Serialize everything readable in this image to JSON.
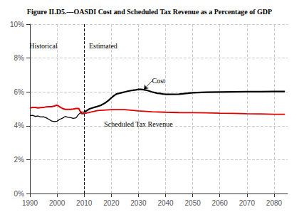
{
  "chart_data": {
    "type": "line",
    "title": "Figure II.D5.—OASDI Cost and Scheduled Tax Revenue as a Percentage of GDP",
    "xlim": [
      1990,
      2085
    ],
    "ylim": [
      0,
      10
    ],
    "xticks": [
      1990,
      2000,
      2010,
      2020,
      2030,
      2040,
      2050,
      2060,
      2070,
      2080
    ],
    "yticks": [
      {
        "value": 0,
        "label": "0%"
      },
      {
        "value": 2,
        "label": "2%"
      },
      {
        "value": 4,
        "label": "4%"
      },
      {
        "value": 6,
        "label": "6%"
      },
      {
        "value": 8,
        "label": "8%"
      },
      {
        "value": 10,
        "label": "10%"
      }
    ],
    "grid": true,
    "series": [
      {
        "color": "black",
        "x": [
          1990,
          1991,
          1992,
          1993,
          1994,
          1995,
          1996,
          1997,
          1998,
          1999,
          2000,
          2001,
          2002,
          2003,
          2004,
          2005,
          2006,
          2007,
          2008,
          2009,
          2010
        ],
        "values": [
          4.6,
          4.62,
          4.55,
          4.58,
          4.52,
          4.53,
          4.47,
          4.38,
          4.28,
          4.25,
          4.27,
          4.38,
          4.45,
          4.55,
          4.5,
          4.48,
          4.44,
          4.47,
          4.68,
          4.82,
          4.8
        ]
      },
      {
        "color": "black",
        "x": [
          2010,
          2011,
          2012,
          2013,
          2014,
          2015,
          2016,
          2017,
          2018,
          2019,
          2020,
          2021,
          2022,
          2023,
          2024,
          2025,
          2026,
          2027,
          2028,
          2029,
          2030,
          2031,
          2032,
          2033,
          2034,
          2035,
          2036,
          2037,
          2038,
          2039,
          2040,
          2045,
          2050,
          2055,
          2060,
          2065,
          2070,
          2075,
          2080,
          2084
        ],
        "values": [
          4.8,
          4.9,
          5.0,
          5.05,
          5.1,
          5.15,
          5.2,
          5.28,
          5.38,
          5.5,
          5.65,
          5.78,
          5.88,
          5.92,
          5.96,
          6.0,
          6.04,
          6.07,
          6.1,
          6.12,
          6.15,
          6.15,
          6.13,
          6.1,
          6.05,
          6.0,
          5.96,
          5.92,
          5.91,
          5.88,
          5.86,
          5.87,
          5.95,
          5.98,
          5.99,
          6.0,
          6.01,
          6.01,
          6.02,
          6.02
        ]
      },
      {
        "color": "#dd0000",
        "x": [
          1990,
          1991,
          1992,
          1993,
          1994,
          1995,
          1996,
          1997,
          1998,
          1999,
          2000,
          2001,
          2002,
          2003,
          2004,
          2005,
          2006,
          2007,
          2008,
          2009,
          2010
        ],
        "values": [
          5.05,
          5.08,
          5.08,
          5.05,
          5.07,
          5.08,
          5.12,
          5.13,
          5.13,
          5.17,
          5.22,
          5.12,
          5.02,
          4.97,
          4.97,
          4.97,
          4.99,
          5.02,
          5.02,
          4.72,
          4.72
        ]
      },
      {
        "color": "#dd0000",
        "x": [
          2010,
          2015,
          2020,
          2025,
          2030,
          2035,
          2040,
          2045,
          2050,
          2055,
          2060,
          2065,
          2070,
          2075,
          2080,
          2084
        ],
        "values": [
          4.72,
          4.9,
          4.95,
          4.95,
          4.88,
          4.83,
          4.8,
          4.78,
          4.77,
          4.76,
          4.74,
          4.73,
          4.71,
          4.7,
          4.68,
          4.68
        ]
      }
    ],
    "vlines": [
      {
        "x": 2010,
        "line_style": "dashed"
      }
    ],
    "annotations": [
      {
        "text": "Historical",
        "x": 1995,
        "y": 8.7
      },
      {
        "text": "Estimated",
        "x": 2017,
        "y": 8.7
      },
      {
        "text": "Cost",
        "x": 2035,
        "y": 6.65,
        "arrow_to": [
          2032,
          6.15
        ]
      },
      {
        "text": "Scheduled Tax Revenue",
        "x": 2030,
        "y": 4.08
      }
    ]
  }
}
